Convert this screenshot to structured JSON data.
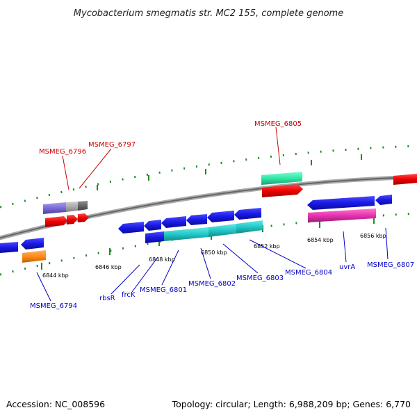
{
  "title": "Mycobacterium smegmatis str. MC2 155, complete genome",
  "footer": {
    "accession": "Accession: NC_008596",
    "summary": "Topology: circular; Length: 6,988,209 bp; Genes: 6,770"
  },
  "scale_labels": [
    "6844 kbp",
    "6846 kbp",
    "6848 kbp",
    "6850 kbp",
    "6852 kbp",
    "6854 kbp",
    "6856 kbp"
  ],
  "gene_labels": [
    {
      "text": "MSMEG_6796",
      "strand": "forward",
      "color": "#cc0000"
    },
    {
      "text": "MSMEG_6797",
      "strand": "forward",
      "color": "#cc0000"
    },
    {
      "text": "MSMEG_6805",
      "strand": "forward",
      "color": "#cc0000"
    },
    {
      "text": "MSMEG_6794",
      "strand": "reverse",
      "color": "#0000cc"
    },
    {
      "text": "rbsR",
      "strand": "reverse",
      "color": "#0000cc"
    },
    {
      "text": "frcK",
      "strand": "reverse",
      "color": "#0000cc"
    },
    {
      "text": "MSMEG_6801",
      "strand": "reverse",
      "color": "#0000cc"
    },
    {
      "text": "MSMEG_6802",
      "strand": "reverse",
      "color": "#0000cc"
    },
    {
      "text": "MSMEG_6803",
      "strand": "reverse",
      "color": "#0000cc"
    },
    {
      "text": "MSMEG_6804",
      "strand": "reverse",
      "color": "#0000cc"
    },
    {
      "text": "uvrA",
      "strand": "reverse",
      "color": "#0000cc"
    },
    {
      "text": "MSMEG_6807",
      "strand": "reverse",
      "color": "#0000cc"
    }
  ],
  "colors": {
    "backbone": "#888888",
    "tick": "#1f8a1f",
    "forward_cds": "#ee0000",
    "reverse_cds": "#1a1ae6",
    "forward_gene_label": "#cc0000",
    "reverse_gene_label": "#0000cc",
    "rna_green": "#33e6a6",
    "rna_cyan": "#22c8c8",
    "rna_magenta": "#e633b0",
    "rna_purple": "#7a6ad6",
    "rna_orange": "#ff8c1a",
    "pseudo_gray": "#aaaaaa"
  }
}
